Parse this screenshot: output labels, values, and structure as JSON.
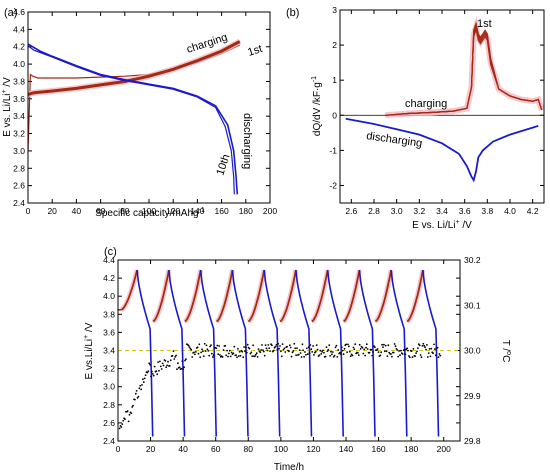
{
  "chart_data": [
    {
      "panel_label": "(a)",
      "type": "line",
      "xlabel": "Specific capacity/mAhg",
      "xlabel_sup": "-1",
      "ylabel_main": "E vs. Li/Li",
      "ylabel_sup": "+",
      "ylabel_unit": " /V",
      "xlim": [
        0,
        200
      ],
      "ylim": [
        2.4,
        4.6
      ],
      "xticks": [
        "0",
        "20",
        "40",
        "60",
        "80",
        "100",
        "120",
        "140",
        "160",
        "180",
        "200"
      ],
      "yticks": [
        "2.4",
        "2.6",
        "2.8",
        "3.0",
        "3.2",
        "3.4",
        "3.6",
        "3.8",
        "4.0",
        "4.2",
        "4.4",
        "4.6"
      ],
      "annotations": [
        "charging",
        "1st",
        "discharging",
        "10th"
      ],
      "colors": {
        "charge": "#a52a14",
        "charge_light": "#f2b8c0",
        "discharge": "#1a1acc"
      },
      "series": [
        {
          "role": "charge-1st",
          "x": [
            0,
            2,
            4,
            8,
            20,
            40,
            60,
            80,
            100,
            120,
            140,
            160,
            175
          ],
          "y": [
            3.0,
            3.88,
            3.86,
            3.84,
            3.84,
            3.84,
            3.85,
            3.86,
            3.88,
            3.94,
            4.02,
            4.12,
            4.22
          ]
        },
        {
          "role": "charge",
          "x": [
            0,
            5,
            20,
            40,
            60,
            80,
            100,
            120,
            140,
            160,
            175
          ],
          "y": [
            3.65,
            3.67,
            3.69,
            3.72,
            3.76,
            3.8,
            3.86,
            3.94,
            4.04,
            4.15,
            4.26
          ]
        },
        {
          "role": "discharge",
          "x": [
            0,
            10,
            20,
            40,
            60,
            80,
            100,
            120,
            140,
            155,
            165,
            170,
            172,
            173
          ],
          "y": [
            4.23,
            4.15,
            4.09,
            3.98,
            3.88,
            3.82,
            3.77,
            3.72,
            3.63,
            3.52,
            3.3,
            3.0,
            2.7,
            2.5
          ]
        },
        {
          "role": "discharge-1st",
          "x": [
            0,
            5,
            20,
            40,
            60,
            80,
            100,
            120,
            140,
            155,
            163,
            168,
            170,
            170.5
          ],
          "y": [
            4.21,
            4.16,
            4.08,
            3.97,
            3.87,
            3.81,
            3.76,
            3.71,
            3.62,
            3.5,
            3.28,
            3.0,
            2.7,
            2.5
          ]
        }
      ]
    },
    {
      "panel_label": "(b)",
      "type": "line",
      "xlabel": "E vs. Li/Li",
      "xlabel_sup": "+",
      "xlabel_unit": " /V",
      "ylabel": "dQ/dV /kF·g",
      "ylabel_sup": "-1",
      "xlim": [
        2.5,
        4.3
      ],
      "ylim": [
        -2.5,
        3
      ],
      "xticks": [
        "2.6",
        "2.8",
        "3.0",
        "3.2",
        "3.4",
        "3.6",
        "3.8",
        "4.0",
        "4.2"
      ],
      "yticks": [
        "-2",
        "-1",
        "0",
        "1",
        "2",
        "3"
      ],
      "annotations": [
        "1st",
        "charging",
        "discharging"
      ],
      "series": [
        {
          "role": "charge",
          "x": [
            2.9,
            3.1,
            3.3,
            3.5,
            3.62,
            3.66,
            3.68,
            3.7,
            3.72,
            3.74,
            3.78,
            3.8,
            3.83,
            3.9,
            4.0,
            4.1,
            4.2,
            4.25,
            4.28
          ],
          "y": [
            0.0,
            0.05,
            0.08,
            0.12,
            0.2,
            0.8,
            2.3,
            2.5,
            2.2,
            2.1,
            2.3,
            2.2,
            1.5,
            0.75,
            0.55,
            0.45,
            0.4,
            0.45,
            0.15
          ]
        },
        {
          "role": "discharge",
          "x": [
            2.55,
            2.8,
            3.0,
            3.2,
            3.4,
            3.55,
            3.62,
            3.66,
            3.68,
            3.7,
            3.72,
            3.76,
            3.85,
            4.0,
            4.1,
            4.2,
            4.25
          ],
          "y": [
            -0.1,
            -0.25,
            -0.4,
            -0.55,
            -0.8,
            -1.1,
            -1.45,
            -1.75,
            -1.85,
            -1.6,
            -1.2,
            -1.0,
            -0.75,
            -0.55,
            -0.45,
            -0.35,
            -0.3
          ]
        }
      ]
    },
    {
      "panel_label": "(c)",
      "type": "line",
      "xlabel": "Time/h",
      "ylabel_main": "E vs.Li/Li",
      "ylabel_sup": "+",
      "ylabel_unit": " /V",
      "y2label": "T /",
      "y2label_sup": "o",
      "y2label_unit": "C",
      "xlim": [
        0,
        210
      ],
      "ylim": [
        2.4,
        4.4
      ],
      "y2lim": [
        29.8,
        30.2
      ],
      "xticks": [
        "0",
        "20",
        "40",
        "60",
        "80",
        "100",
        "120",
        "140",
        "160",
        "180",
        "200"
      ],
      "yticks": [
        "2.4",
        "2.6",
        "2.8",
        "3.0",
        "3.2",
        "3.4",
        "3.6",
        "3.8",
        "4.0",
        "4.2",
        "4.4"
      ],
      "y2ticks": [
        "29.8",
        "29.9",
        "30.0",
        "30.1",
        "30.2"
      ],
      "cycles": 10,
      "cycle_period_h": 19.5,
      "first_charge_start_h": 2,
      "charge_profile": {
        "start_V": 3.72,
        "end_V": 4.29,
        "plateau_V": 3.85
      },
      "discharge_profile": {
        "start_V": 4.29,
        "end_V": 2.45
      },
      "temperature_reference_C": 30.0
    }
  ]
}
